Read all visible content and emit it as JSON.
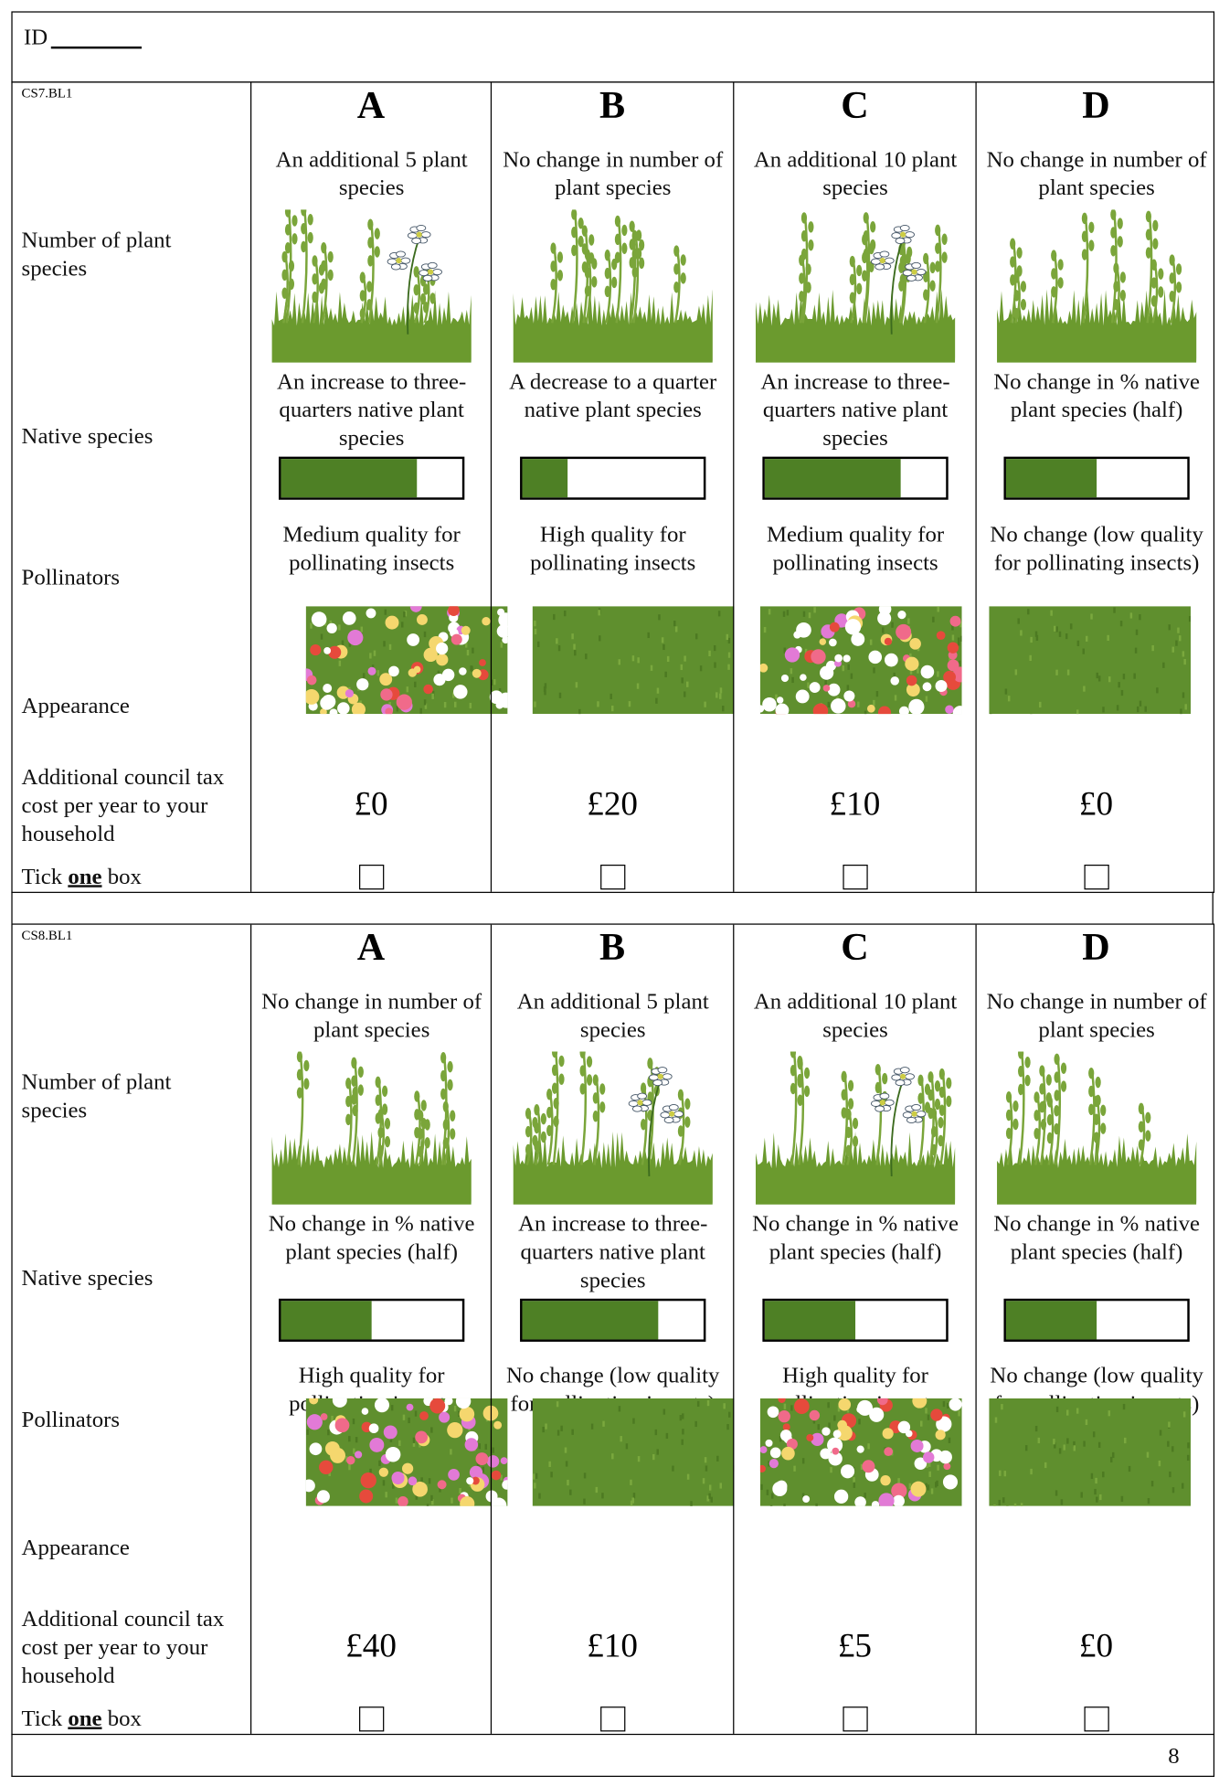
{
  "header": {
    "id_label": "ID"
  },
  "choice_sets": [
    {
      "code": "CS7.BL1",
      "row_labels": {
        "plant_species": "Number of plant species",
        "native_species": "Native species",
        "pollinators": "Pollinators",
        "appearance": "Appearance",
        "cost": "Additional council tax cost per year to your household",
        "tick_prefix": "Tick",
        "tick_emphasis": "one",
        "tick_suffix": "box"
      },
      "options": [
        {
          "letter": "A",
          "plant_species": "An additional 5 plant species",
          "native_species": "An increase to three-quarters native plant species",
          "pollinators": "Medium quality for pollinating insects",
          "cost": "£0"
        },
        {
          "letter": "B",
          "plant_species": "No change in number of plant species",
          "native_species": "A decrease to a quarter native plant species",
          "pollinators": "High quality for pollinating insects",
          "cost": "£20"
        },
        {
          "letter": "C",
          "plant_species": "An additional 10 plant species",
          "native_species": "An increase to three-quarters native plant species",
          "pollinators": "Medium quality for pollinating insects",
          "cost": "£10"
        },
        {
          "letter": "D",
          "plant_species": "No change in number of plant species",
          "native_species": "No change in % native plant species (half)",
          "pollinators": "No change (low quality for pollinating insects)",
          "cost": "£0"
        }
      ]
    },
    {
      "code": "CS8.BL1",
      "row_labels": {
        "plant_species": "Number of plant species",
        "native_species": "Native species",
        "pollinators": "Pollinators",
        "appearance": "Appearance",
        "cost": "Additional council tax cost per year to your household",
        "tick_prefix": "Tick",
        "tick_emphasis": "one",
        "tick_suffix": "box"
      },
      "options": [
        {
          "letter": "A",
          "plant_species": "No change in number of plant species",
          "native_species": "No change in % native plant species (half)",
          "pollinators": "High quality for pollinating insects",
          "cost": "£40"
        },
        {
          "letter": "B",
          "plant_species": "An additional 5 plant species",
          "native_species": "An increase to three-quarters native plant species",
          "pollinators": "No change (low quality for pollinating insects)",
          "cost": "£10"
        },
        {
          "letter": "C",
          "plant_species": "An additional 10 plant species",
          "native_species": "No change in % native plant species (half)",
          "pollinators": "High quality for pollinating insects",
          "cost": "£5"
        },
        {
          "letter": "D",
          "plant_species": "No change in number of plant species",
          "native_species": "No change in % native plant species (half)",
          "pollinators": "No change (low quality for pollinating insects)",
          "cost": "£0"
        }
      ]
    }
  ],
  "footer": {
    "page_number": "8"
  }
}
